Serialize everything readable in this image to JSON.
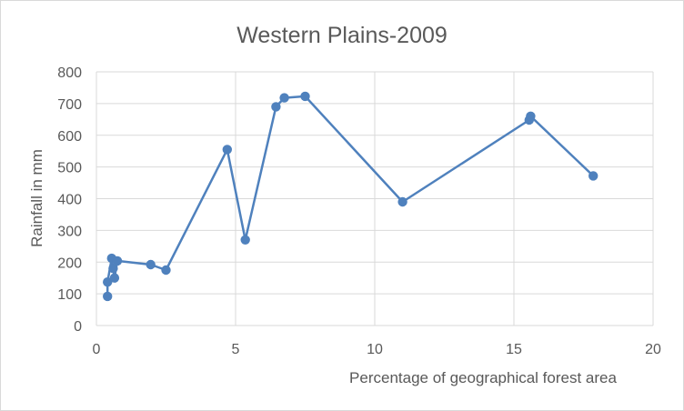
{
  "chart_data": {
    "type": "scatter",
    "title": "Western Plains-2009",
    "xlabel": "Percentage of geographical forest area",
    "ylabel": "Rainfall in mm",
    "xlim": [
      0,
      20
    ],
    "ylim": [
      0,
      800
    ],
    "xticks": [
      0,
      5,
      10,
      15,
      20
    ],
    "yticks": [
      0,
      100,
      200,
      300,
      400,
      500,
      600,
      700,
      800
    ],
    "grid": true,
    "legend": "none",
    "series": [
      {
        "color": "#4f81bd",
        "connected": true,
        "points": [
          {
            "x": 0.4,
            "y": 92
          },
          {
            "x": 0.4,
            "y": 137
          },
          {
            "x": 0.55,
            "y": 212
          },
          {
            "x": 0.6,
            "y": 180
          },
          {
            "x": 0.65,
            "y": 150
          },
          {
            "x": 0.75,
            "y": 204
          },
          {
            "x": 1.95,
            "y": 192
          },
          {
            "x": 2.5,
            "y": 175
          },
          {
            "x": 4.7,
            "y": 555
          },
          {
            "x": 5.35,
            "y": 270
          },
          {
            "x": 6.45,
            "y": 690
          },
          {
            "x": 6.75,
            "y": 718
          },
          {
            "x": 7.5,
            "y": 723
          },
          {
            "x": 11.0,
            "y": 390
          },
          {
            "x": 15.55,
            "y": 648
          },
          {
            "x": 15.6,
            "y": 660
          },
          {
            "x": 17.85,
            "y": 472
          }
        ]
      }
    ]
  }
}
